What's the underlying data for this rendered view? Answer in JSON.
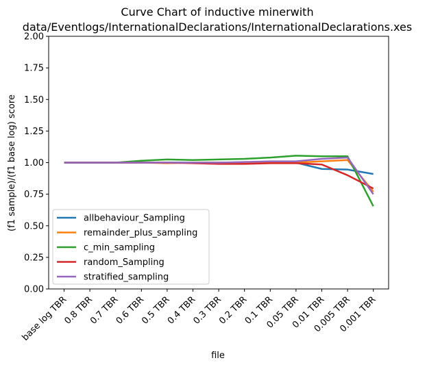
{
  "chart_data": {
    "type": "line",
    "title_line1": "Curve Chart of inductive minerwith",
    "title_line2": "data/Eventlogs/InternationalDeclarations/InternationalDeclarations.xes",
    "xlabel": "file",
    "ylabel": "(f1 sample)/(f1 base log) score",
    "ylim": [
      0,
      2
    ],
    "yticks": [
      "0.00",
      "0.25",
      "0.50",
      "0.75",
      "1.00",
      "1.25",
      "1.50",
      "1.75",
      "2.00"
    ],
    "categories": [
      "base log TBR",
      "0.8 TBR",
      "0.7 TBR",
      "0.6 TBR",
      "0.5 TBR",
      "0.4 TBR",
      "0.3 TBR",
      "0.2 TBR",
      "0.1 TBR",
      "0.05 TBR",
      "0.01 TBR",
      "0.005 TBR",
      "0.001 TBR"
    ],
    "grid": false,
    "legend_position": "lower-left",
    "series": [
      {
        "name": "allbehaviour_Sampling",
        "color": "#1f77b4",
        "values": [
          1.0,
          1.0,
          1.0,
          1.0,
          1.0,
          1.0,
          1.0,
          1.0,
          1.0,
          1.0,
          0.95,
          0.945,
          0.91
        ]
      },
      {
        "name": "remainder_plus_sampling",
        "color": "#ff7f0e",
        "values": [
          1.0,
          1.0,
          1.0,
          1.0,
          0.995,
          1.0,
          1.0,
          1.0,
          1.0,
          1.0,
          1.01,
          1.02,
          0.77
        ]
      },
      {
        "name": "c_min_sampling",
        "color": "#2ca02c",
        "values": [
          1.0,
          1.0,
          1.0,
          1.015,
          1.025,
          1.02,
          1.025,
          1.03,
          1.04,
          1.055,
          1.05,
          1.05,
          0.655
        ]
      },
      {
        "name": "random_Sampling",
        "color": "#d62728",
        "values": [
          1.0,
          1.0,
          1.0,
          1.0,
          1.0,
          0.995,
          0.99,
          0.99,
          0.995,
          0.995,
          0.985,
          0.9,
          0.795
        ]
      },
      {
        "name": "stratified_sampling",
        "color": "#9467bd",
        "values": [
          1.0,
          1.0,
          1.0,
          1.0,
          1.0,
          1.0,
          1.0,
          1.005,
          1.01,
          1.01,
          1.03,
          1.04,
          0.75
        ]
      }
    ]
  }
}
